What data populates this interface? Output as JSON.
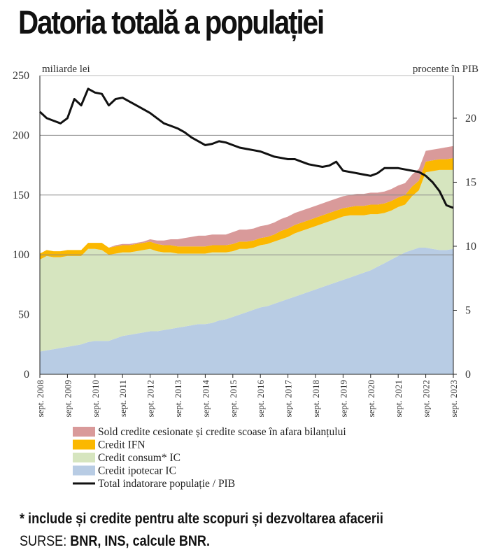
{
  "title": "Datoria totală a populației",
  "chart_data": {
    "type": "area",
    "left_axis_label": "miliarde lei",
    "right_axis_label": "procente în PIB",
    "left_ylim": [
      0,
      250
    ],
    "left_ticks": [
      0,
      50,
      100,
      150,
      200,
      250
    ],
    "right_ylim": [
      0,
      23.33
    ],
    "right_ticks": [
      0,
      5,
      10,
      15,
      20
    ],
    "grid": "horizontal at 100, 150, 200",
    "x_range": [
      2008.75,
      2023.75
    ],
    "x_tick_labels": [
      "sept. 2008",
      "sept. 2009",
      "sept. 2010",
      "sept. 2011",
      "sept. 2012",
      "sept. 2013",
      "sept. 2014",
      "sept. 2015",
      "sept. 2016",
      "sept. 2017",
      "sept. 2018",
      "sept. 2019",
      "sept. 2020",
      "sept. 2021",
      "sept. 2022",
      "sept. 2023"
    ],
    "x": [
      2008.75,
      2009.0,
      2009.25,
      2009.5,
      2009.75,
      2010.0,
      2010.25,
      2010.5,
      2010.75,
      2011.0,
      2011.25,
      2011.5,
      2011.75,
      2012.0,
      2012.25,
      2012.5,
      2012.75,
      2013.0,
      2013.25,
      2013.5,
      2013.75,
      2014.0,
      2014.25,
      2014.5,
      2014.75,
      2015.0,
      2015.25,
      2015.5,
      2015.75,
      2016.0,
      2016.25,
      2016.5,
      2016.75,
      2017.0,
      2017.25,
      2017.5,
      2017.75,
      2018.0,
      2018.25,
      2018.5,
      2018.75,
      2019.0,
      2019.25,
      2019.5,
      2019.75,
      2020.0,
      2020.25,
      2020.5,
      2020.75,
      2021.0,
      2021.25,
      2021.5,
      2021.75,
      2022.0,
      2022.25,
      2022.5,
      2022.75,
      2023.0,
      2023.25,
      2023.5,
      2023.75
    ],
    "series": [
      {
        "name": "Credit ipotecar IC",
        "color": "#b8cce4",
        "values": [
          19,
          20,
          21,
          22,
          23,
          24,
          25,
          27,
          28,
          28,
          28,
          30,
          32,
          33,
          34,
          35,
          36,
          36,
          37,
          38,
          39,
          40,
          41,
          42,
          42,
          43,
          45,
          46,
          48,
          50,
          52,
          54,
          56,
          57,
          59,
          61,
          63,
          65,
          67,
          69,
          71,
          73,
          75,
          77,
          79,
          81,
          83,
          85,
          87,
          90,
          93,
          96,
          99,
          102,
          104,
          106,
          106,
          105,
          104,
          104,
          105
        ]
      },
      {
        "name": "Credit consum* IC",
        "color": "#d6e5bf",
        "values": [
          77,
          79,
          77,
          76,
          76,
          75,
          74,
          78,
          77,
          76,
          72,
          71,
          70,
          69,
          69,
          69,
          69,
          67,
          65,
          64,
          62,
          61,
          60,
          59,
          59,
          59,
          57,
          56,
          55,
          55,
          53,
          52,
          52,
          52,
          52,
          52,
          52,
          53,
          53,
          53,
          53,
          53,
          53,
          53,
          53,
          52,
          50,
          48,
          47,
          44,
          42,
          41,
          41,
          40,
          45,
          48,
          63,
          65,
          67,
          67,
          66
        ]
      },
      {
        "name": "Credit IFN",
        "color": "#fbb800",
        "values": [
          5,
          5,
          5,
          5,
          5,
          5,
          5,
          5,
          5,
          6,
          6,
          6,
          6,
          6,
          6,
          6,
          6,
          6,
          6,
          6,
          6,
          6,
          6,
          6,
          6,
          6,
          6,
          6,
          6,
          6,
          6,
          6,
          6,
          6,
          6,
          7,
          7,
          7,
          7,
          7,
          7,
          7,
          7,
          7,
          7,
          7,
          8,
          8,
          8,
          8,
          8,
          8,
          8,
          8,
          8,
          8,
          9,
          9,
          9,
          9,
          10
        ]
      },
      {
        "name": "Sold credite cesionate și credite scoase în afara bilanțului",
        "color": "#d99a9a",
        "values": [
          0,
          0,
          0,
          0,
          0,
          0,
          0,
          0,
          0,
          0,
          0,
          1,
          1,
          1,
          1,
          1,
          2,
          3,
          4,
          5,
          6,
          7,
          8,
          9,
          9,
          9,
          9,
          9,
          10,
          10,
          10,
          10,
          10,
          10,
          10,
          10,
          10,
          10,
          10,
          10,
          10,
          10,
          10,
          10,
          10,
          10,
          10,
          10,
          10,
          10,
          10,
          10,
          10,
          10,
          10,
          10,
          9,
          9,
          9,
          10,
          10
        ]
      },
      {
        "name": "Total indatorare populație / PIB",
        "color": "#111111",
        "axis": "right",
        "values": [
          20.5,
          20.0,
          19.8,
          19.6,
          20.0,
          21.5,
          21.0,
          22.3,
          22.0,
          21.9,
          21.0,
          21.5,
          21.6,
          21.3,
          21.0,
          20.7,
          20.4,
          20.0,
          19.6,
          19.4,
          19.2,
          18.9,
          18.5,
          18.2,
          17.9,
          18.0,
          18.2,
          18.1,
          17.9,
          17.7,
          17.6,
          17.5,
          17.4,
          17.2,
          17.0,
          16.9,
          16.8,
          16.8,
          16.6,
          16.4,
          16.3,
          16.2,
          16.3,
          16.6,
          15.9,
          15.8,
          15.7,
          15.6,
          15.5,
          15.7,
          16.1,
          16.1,
          16.1,
          16.0,
          15.9,
          15.8,
          15.5,
          15.0,
          14.3,
          13.2,
          13.0
        ]
      }
    ],
    "legend_placement": "below chart",
    "legend": [
      {
        "label": "Sold credite cesionate și credite scoase în afara bilanțului",
        "color": "#d99a9a",
        "kind": "swatch"
      },
      {
        "label": "Credit IFN",
        "color": "#fbb800",
        "kind": "swatch"
      },
      {
        "label": "Credit consum* IC",
        "color": "#d6e5bf",
        "kind": "swatch"
      },
      {
        "label": "Credit ipotecar IC",
        "color": "#b8cce4",
        "kind": "swatch"
      },
      {
        "label": "Total indatorare populație / PIB",
        "color": "#111111",
        "kind": "line"
      }
    ]
  },
  "footnote": "* include și credite pentru alte scopuri și dezvoltarea afacerii",
  "sources": {
    "label": "SURSE:",
    "text": "BNR, INS, calcule BNR."
  }
}
